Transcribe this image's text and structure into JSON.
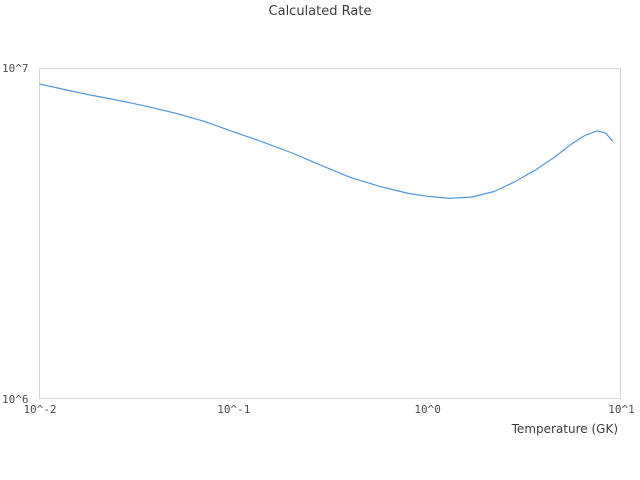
{
  "chart_data": {
    "type": "line",
    "title": "Calculated Rate",
    "xlabel": "Temperature (GK)",
    "ylabel": "",
    "x_scale": "log",
    "y_scale": "log",
    "xlim": [
      0.01,
      10
    ],
    "ylim": [
      1000000,
      10000000
    ],
    "grid": false,
    "legend": "none",
    "line_color": "#4f96d8",
    "x_ticks": [
      {
        "value": 0.01,
        "label": "10^-2"
      },
      {
        "value": 0.1,
        "label": "10^-1"
      },
      {
        "value": 1,
        "label": "10^0"
      },
      {
        "value": 10,
        "label": "10^1"
      }
    ],
    "y_ticks": [
      {
        "value": 1000000,
        "label": "10^6"
      },
      {
        "value": 10000000,
        "label": "10^7"
      }
    ],
    "series": [
      {
        "name": "Calculated Rate",
        "x": [
          0.01,
          0.013,
          0.018,
          0.025,
          0.035,
          0.05,
          0.07,
          0.1,
          0.14,
          0.2,
          0.28,
          0.4,
          0.56,
          0.8,
          1.0,
          1.3,
          1.7,
          2.2,
          2.8,
          3.6,
          4.5,
          5.5,
          6.5,
          7.5,
          8.3,
          9.0
        ],
        "y": [
          9000000.0,
          8700000.0,
          8350000.0,
          8050000.0,
          7720000.0,
          7350000.0,
          6950000.0,
          6450000.0,
          6020000.0,
          5570000.0,
          5120000.0,
          4700000.0,
          4420000.0,
          4200000.0,
          4120000.0,
          4060000.0,
          4100000.0,
          4260000.0,
          4550000.0,
          4950000.0,
          5400000.0,
          5920000.0,
          6300000.0,
          6500000.0,
          6400000.0,
          6050000.0
        ]
      }
    ]
  }
}
